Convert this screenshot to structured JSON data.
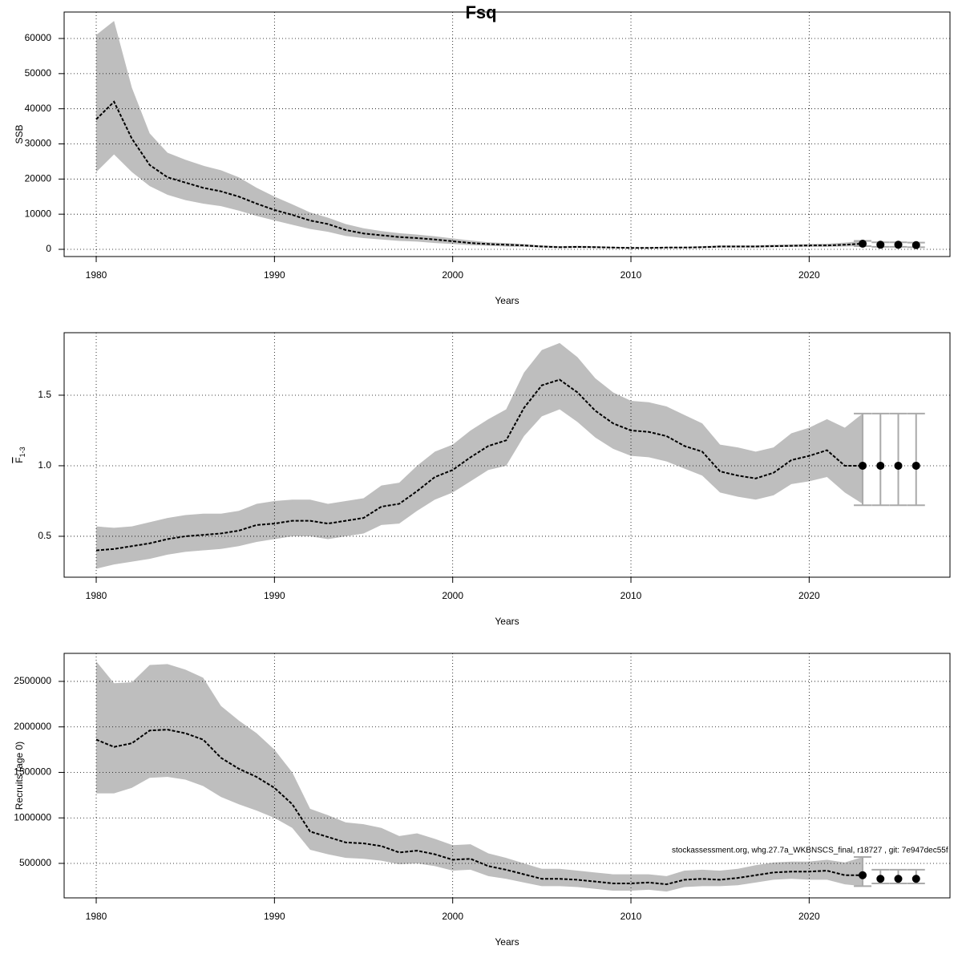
{
  "title": "Fsq",
  "chart_data": [
    {
      "type": "line",
      "ylabel": "SSB",
      "xlabel": "Years",
      "xlim": [
        1978.2,
        2027.9
      ],
      "xticks": [
        1980,
        1990,
        2000,
        2010,
        2020
      ],
      "ylim": [
        -2053,
        67530
      ],
      "yticks": [
        0,
        10000,
        20000,
        30000,
        40000,
        50000,
        60000
      ],
      "grid": true,
      "band_color": "#bebebe",
      "line_color": "#000000",
      "bar_color": "#aaaaaa",
      "x": [
        1980,
        1981,
        1982,
        1983,
        1984,
        1985,
        1986,
        1987,
        1988,
        1989,
        1990,
        1991,
        1992,
        1993,
        1994,
        1995,
        1996,
        1997,
        1998,
        1999,
        2000,
        2001,
        2002,
        2003,
        2004,
        2005,
        2006,
        2007,
        2008,
        2009,
        2010,
        2011,
        2012,
        2013,
        2014,
        2015,
        2016,
        2017,
        2018,
        2019,
        2020,
        2021,
        2022,
        2023
      ],
      "values": [
        37000,
        42000,
        31500,
        24000,
        20500,
        19000,
        17500,
        16500,
        15000,
        13000,
        11200,
        9800,
        8200,
        7200,
        5500,
        4500,
        4000,
        3500,
        3200,
        2800,
        2300,
        1800,
        1500,
        1300,
        1100,
        800,
        600,
        700,
        600,
        500,
        400,
        400,
        500,
        500,
        600,
        800,
        800,
        800,
        900,
        1000,
        1100,
        1100,
        1300,
        1600
      ],
      "lower": [
        22000,
        27000,
        22000,
        18000,
        15500,
        14000,
        13000,
        12300,
        11000,
        9500,
        8200,
        7000,
        5800,
        5000,
        3800,
        3200,
        2800,
        2400,
        2200,
        1800,
        1500,
        1200,
        1000,
        800,
        700,
        500,
        400,
        400,
        400,
        300,
        250,
        250,
        300,
        300,
        400,
        500,
        500,
        500,
        600,
        700,
        700,
        700,
        800,
        900
      ],
      "upper": [
        61000,
        65000,
        46000,
        33000,
        27500,
        25500,
        23800,
        22500,
        20500,
        17500,
        15000,
        12800,
        10500,
        9000,
        7200,
        6000,
        5200,
        4600,
        4200,
        3700,
        3100,
        2500,
        2000,
        1800,
        1500,
        1100,
        900,
        1000,
        900,
        700,
        600,
        600,
        700,
        700,
        900,
        1100,
        1100,
        1100,
        1300,
        1400,
        1500,
        1600,
        1900,
        2400
      ],
      "projection": {
        "x": [
          2023,
          2024,
          2025,
          2026
        ],
        "values": [
          1600,
          1300,
          1300,
          1200
        ],
        "lower": [
          900,
          700,
          700,
          600
        ],
        "upper": [
          2400,
          2000,
          2000,
          1900
        ]
      }
    },
    {
      "type": "line",
      "ylabel": "F",
      "ylabel_sub": "1-3",
      "xlabel": "Years",
      "xlim": [
        1978.2,
        2027.9
      ],
      "xticks": [
        1980,
        1990,
        2000,
        2010,
        2020
      ],
      "ylim": [
        0.21,
        1.943
      ],
      "yticks": [
        {
          "value": 0.5,
          "label": "0.5"
        },
        {
          "value": 1,
          "label": "1.0"
        },
        {
          "value": 1.5,
          "label": "1.5"
        }
      ],
      "grid": true,
      "band_color": "#bebebe",
      "line_color": "#000000",
      "bar_color": "#aaaaaa",
      "x": [
        1980,
        1981,
        1982,
        1983,
        1984,
        1985,
        1986,
        1987,
        1988,
        1989,
        1990,
        1991,
        1992,
        1993,
        1994,
        1995,
        1996,
        1997,
        1998,
        1999,
        2000,
        2001,
        2002,
        2003,
        2004,
        2005,
        2006,
        2007,
        2008,
        2009,
        2010,
        2011,
        2012,
        2013,
        2014,
        2015,
        2016,
        2017,
        2018,
        2019,
        2020,
        2021,
        2022,
        2023
      ],
      "values": [
        0.4,
        0.41,
        0.43,
        0.45,
        0.48,
        0.5,
        0.51,
        0.52,
        0.54,
        0.58,
        0.59,
        0.61,
        0.61,
        0.59,
        0.61,
        0.63,
        0.71,
        0.73,
        0.82,
        0.92,
        0.97,
        1.06,
        1.14,
        1.18,
        1.41,
        1.57,
        1.61,
        1.52,
        1.39,
        1.3,
        1.25,
        1.24,
        1.21,
        1.14,
        1.1,
        0.96,
        0.93,
        0.91,
        0.95,
        1.04,
        1.07,
        1.11,
        1.0,
        1.0
      ],
      "lower": [
        0.27,
        0.3,
        0.32,
        0.34,
        0.37,
        0.39,
        0.4,
        0.41,
        0.43,
        0.46,
        0.48,
        0.5,
        0.5,
        0.48,
        0.5,
        0.52,
        0.58,
        0.59,
        0.68,
        0.76,
        0.81,
        0.89,
        0.97,
        1.0,
        1.21,
        1.35,
        1.4,
        1.31,
        1.2,
        1.12,
        1.07,
        1.06,
        1.03,
        0.98,
        0.93,
        0.81,
        0.78,
        0.76,
        0.79,
        0.87,
        0.89,
        0.92,
        0.81,
        0.73
      ],
      "upper": [
        0.57,
        0.56,
        0.57,
        0.6,
        0.63,
        0.65,
        0.66,
        0.66,
        0.68,
        0.73,
        0.75,
        0.76,
        0.76,
        0.73,
        0.75,
        0.77,
        0.86,
        0.88,
        1.0,
        1.1,
        1.15,
        1.25,
        1.33,
        1.4,
        1.66,
        1.82,
        1.87,
        1.77,
        1.62,
        1.52,
        1.46,
        1.45,
        1.42,
        1.36,
        1.3,
        1.15,
        1.13,
        1.1,
        1.13,
        1.23,
        1.27,
        1.33,
        1.27,
        1.37
      ],
      "projection": {
        "x": [
          2023,
          2024,
          2025,
          2026
        ],
        "values": [
          1.0,
          1.0,
          1.0,
          1.0
        ],
        "lower": [
          0.72,
          0.72,
          0.72,
          0.72
        ],
        "upper": [
          1.37,
          1.37,
          1.37,
          1.37
        ]
      }
    },
    {
      "type": "line",
      "ylabel": "Recruits (age 0)",
      "xlabel": "Years",
      "xlim": [
        1978.2,
        2027.9
      ],
      "xticks": [
        1980,
        1990,
        2000,
        2010,
        2020
      ],
      "ylim": [
        121000,
        2808000
      ],
      "yticks": [
        500000,
        1000000,
        1500000,
        2000000,
        2500000
      ],
      "grid": true,
      "band_color": "#bebebe",
      "line_color": "#000000",
      "bar_color": "#aaaaaa",
      "annotation": "stockassessment.org, whg.27.7a_WKBNSCS_final, r18727 , git: 7e947dec55f",
      "x": [
        1980,
        1981,
        1982,
        1983,
        1984,
        1985,
        1986,
        1987,
        1988,
        1989,
        1990,
        1991,
        1992,
        1993,
        1994,
        1995,
        1996,
        1997,
        1998,
        1999,
        2000,
        2001,
        2002,
        2003,
        2004,
        2005,
        2006,
        2007,
        2008,
        2009,
        2010,
        2011,
        2012,
        2013,
        2014,
        2015,
        2016,
        2017,
        2018,
        2019,
        2020,
        2021,
        2022,
        2023
      ],
      "values": [
        1860000,
        1780000,
        1820000,
        1960000,
        1970000,
        1930000,
        1860000,
        1660000,
        1540000,
        1450000,
        1330000,
        1150000,
        850000,
        790000,
        730000,
        720000,
        690000,
        620000,
        640000,
        600000,
        540000,
        550000,
        470000,
        430000,
        380000,
        330000,
        330000,
        320000,
        300000,
        280000,
        280000,
        290000,
        270000,
        320000,
        330000,
        320000,
        340000,
        370000,
        400000,
        410000,
        410000,
        420000,
        370000,
        370000
      ],
      "lower": [
        1270000,
        1270000,
        1330000,
        1440000,
        1450000,
        1420000,
        1350000,
        1230000,
        1150000,
        1080000,
        1000000,
        890000,
        650000,
        600000,
        560000,
        550000,
        530000,
        490000,
        500000,
        470000,
        420000,
        430000,
        360000,
        330000,
        290000,
        250000,
        250000,
        240000,
        220000,
        200000,
        200000,
        210000,
        190000,
        240000,
        250000,
        250000,
        260000,
        290000,
        320000,
        330000,
        320000,
        320000,
        270000,
        250000
      ],
      "upper": [
        2720000,
        2480000,
        2490000,
        2680000,
        2690000,
        2630000,
        2540000,
        2230000,
        2070000,
        1930000,
        1750000,
        1500000,
        1100000,
        1030000,
        950000,
        930000,
        890000,
        800000,
        830000,
        770000,
        700000,
        710000,
        610000,
        560000,
        500000,
        440000,
        440000,
        420000,
        400000,
        380000,
        380000,
        380000,
        360000,
        420000,
        430000,
        420000,
        440000,
        480000,
        510000,
        520000,
        520000,
        540000,
        510000,
        570000
      ],
      "projection": {
        "x": [
          2023,
          2024,
          2025,
          2026
        ],
        "values": [
          370000,
          330000,
          330000,
          330000
        ],
        "lower": [
          250000,
          280000,
          280000,
          280000
        ],
        "upper": [
          570000,
          430000,
          430000,
          430000
        ]
      }
    }
  ]
}
